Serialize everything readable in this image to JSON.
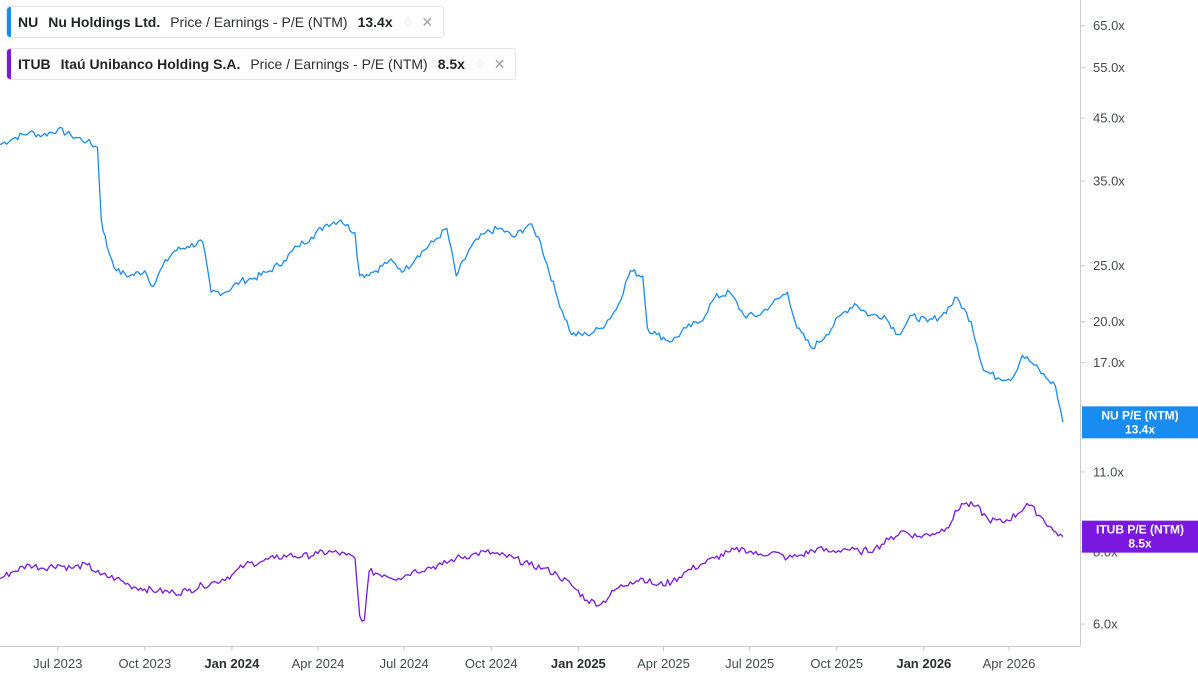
{
  "legend": [
    {
      "ticker": "NU",
      "company": "Nu Holdings Ltd.",
      "metric": "Price / Earnings - P/E (NTM)",
      "value": "13.4x",
      "color": "#1a8cf0"
    },
    {
      "ticker": "ITUB",
      "company": "Itaú Unibanco Holding S.A.",
      "metric": "Price / Earnings - P/E (NTM)",
      "value": "8.5x",
      "color": "#7a18e0"
    }
  ],
  "chart_data": {
    "type": "line",
    "yscale": "log",
    "ylim": [
      5.5,
      72
    ],
    "y_ticks": [
      {
        "value": 6.0,
        "label": "6.0x"
      },
      {
        "value": 8.0,
        "label": "8.0x"
      },
      {
        "value": 11.0,
        "label": "11.0x"
      },
      {
        "value": 17.0,
        "label": "17.0x"
      },
      {
        "value": 20.0,
        "label": "20.0x"
      },
      {
        "value": 25.0,
        "label": "25.0x"
      },
      {
        "value": 35.0,
        "label": "35.0x"
      },
      {
        "value": 45.0,
        "label": "45.0x"
      },
      {
        "value": 55.0,
        "label": "55.0x"
      },
      {
        "value": 65.0,
        "label": "65.0x"
      }
    ],
    "xlim": [
      "2023-05-01",
      "2026-06-15"
    ],
    "x_ticks": [
      {
        "date": "2023-07-01",
        "label": "Jul 2023",
        "bold": false
      },
      {
        "date": "2023-10-01",
        "label": "Oct 2023",
        "bold": false
      },
      {
        "date": "2024-01-01",
        "label": "Jan 2024",
        "bold": true
      },
      {
        "date": "2024-04-01",
        "label": "Apr 2024",
        "bold": false
      },
      {
        "date": "2024-07-01",
        "label": "Jul 2024",
        "bold": false
      },
      {
        "date": "2024-10-01",
        "label": "Oct 2024",
        "bold": false
      },
      {
        "date": "2025-01-01",
        "label": "Jan 2025",
        "bold": true
      },
      {
        "date": "2025-04-01",
        "label": "Apr 2025",
        "bold": false
      },
      {
        "date": "2025-07-01",
        "label": "Jul 2025",
        "bold": false
      },
      {
        "date": "2025-10-01",
        "label": "Oct 2025",
        "bold": false
      },
      {
        "date": "2026-01-01",
        "label": "Jan 2026",
        "bold": true
      },
      {
        "date": "2026-04-01",
        "label": "Apr 2026",
        "bold": false
      }
    ],
    "grid": false,
    "series": [
      {
        "name": "NU P/E (NTM)",
        "end_label": "13.4x",
        "color": "#1a8cf0",
        "points": [
          [
            "2023-05-01",
            40.5
          ],
          [
            "2023-05-15",
            41.5
          ],
          [
            "2023-06-01",
            42.5
          ],
          [
            "2023-06-15",
            42.0
          ],
          [
            "2023-07-01",
            43.0
          ],
          [
            "2023-07-15",
            42.0
          ],
          [
            "2023-08-01",
            41.0
          ],
          [
            "2023-08-12",
            40.0
          ],
          [
            "2023-08-16",
            30.0
          ],
          [
            "2023-08-22",
            27.0
          ],
          [
            "2023-09-01",
            24.5
          ],
          [
            "2023-09-15",
            24.0
          ],
          [
            "2023-10-01",
            24.5
          ],
          [
            "2023-10-10",
            23.0
          ],
          [
            "2023-10-20",
            25.0
          ],
          [
            "2023-11-01",
            26.5
          ],
          [
            "2023-11-15",
            27.0
          ],
          [
            "2023-12-01",
            27.5
          ],
          [
            "2023-12-10",
            22.5
          ],
          [
            "2023-12-25",
            22.5
          ],
          [
            "2024-01-10",
            23.5
          ],
          [
            "2024-01-25",
            23.8
          ],
          [
            "2024-02-10",
            24.5
          ],
          [
            "2024-02-25",
            25.5
          ],
          [
            "2024-03-10",
            27.0
          ],
          [
            "2024-03-25",
            28.0
          ],
          [
            "2024-04-10",
            29.5
          ],
          [
            "2024-04-25",
            30.0
          ],
          [
            "2024-05-10",
            28.5
          ],
          [
            "2024-05-15",
            24.0
          ],
          [
            "2024-06-01",
            24.5
          ],
          [
            "2024-06-15",
            25.5
          ],
          [
            "2024-07-01",
            24.5
          ],
          [
            "2024-07-15",
            26.0
          ],
          [
            "2024-08-01",
            27.5
          ],
          [
            "2024-08-15",
            29.0
          ],
          [
            "2024-08-25",
            24.0
          ],
          [
            "2024-09-10",
            27.0
          ],
          [
            "2024-09-25",
            28.5
          ],
          [
            "2024-10-10",
            29.0
          ],
          [
            "2024-10-25",
            28.0
          ],
          [
            "2024-11-10",
            29.5
          ],
          [
            "2024-11-20",
            28.0
          ],
          [
            "2024-12-10",
            22.0
          ],
          [
            "2024-12-25",
            19.0
          ],
          [
            "2025-01-10",
            19.0
          ],
          [
            "2025-01-25",
            19.5
          ],
          [
            "2025-02-10",
            21.0
          ],
          [
            "2025-02-25",
            24.5
          ],
          [
            "2025-03-10",
            24.0
          ],
          [
            "2025-03-15",
            19.5
          ],
          [
            "2025-03-25",
            19.0
          ],
          [
            "2025-04-10",
            18.5
          ],
          [
            "2025-04-25",
            19.5
          ],
          [
            "2025-05-10",
            20.0
          ],
          [
            "2025-05-25",
            22.0
          ],
          [
            "2025-06-10",
            22.5
          ],
          [
            "2025-06-25",
            20.5
          ],
          [
            "2025-07-10",
            20.5
          ],
          [
            "2025-07-25",
            21.5
          ],
          [
            "2025-08-10",
            22.5
          ],
          [
            "2025-08-20",
            19.5
          ],
          [
            "2025-09-05",
            18.0
          ],
          [
            "2025-09-20",
            19.0
          ],
          [
            "2025-10-05",
            20.5
          ],
          [
            "2025-10-20",
            21.5
          ],
          [
            "2025-11-05",
            20.5
          ],
          [
            "2025-11-20",
            20.5
          ],
          [
            "2025-12-05",
            19.0
          ],
          [
            "2025-12-20",
            20.5
          ],
          [
            "2026-01-05",
            20.0
          ],
          [
            "2026-01-20",
            20.5
          ],
          [
            "2026-02-05",
            22.0
          ],
          [
            "2026-02-20",
            20.0
          ],
          [
            "2026-03-05",
            16.5
          ],
          [
            "2026-03-20",
            16.0
          ],
          [
            "2026-04-05",
            16.0
          ],
          [
            "2026-04-15",
            17.5
          ],
          [
            "2026-04-25",
            17.0
          ],
          [
            "2026-05-10",
            16.0
          ],
          [
            "2026-05-20",
            15.5
          ],
          [
            "2026-05-28",
            13.4
          ]
        ]
      },
      {
        "name": "ITUB P/E (NTM)",
        "end_label": "8.5x",
        "color": "#7a18e0",
        "points": [
          [
            "2023-05-01",
            7.2
          ],
          [
            "2023-05-15",
            7.4
          ],
          [
            "2023-06-01",
            7.6
          ],
          [
            "2023-06-15",
            7.5
          ],
          [
            "2023-07-01",
            7.6
          ],
          [
            "2023-07-15",
            7.5
          ],
          [
            "2023-08-01",
            7.6
          ],
          [
            "2023-08-15",
            7.3
          ],
          [
            "2023-09-01",
            7.2
          ],
          [
            "2023-09-15",
            7.0
          ],
          [
            "2023-10-01",
            6.9
          ],
          [
            "2023-10-15",
            6.85
          ],
          [
            "2023-11-01",
            6.8
          ],
          [
            "2023-11-15",
            6.85
          ],
          [
            "2023-12-01",
            7.0
          ],
          [
            "2023-12-15",
            7.1
          ],
          [
            "2024-01-01",
            7.3
          ],
          [
            "2024-01-15",
            7.6
          ],
          [
            "2024-02-01",
            7.7
          ],
          [
            "2024-02-15",
            7.8
          ],
          [
            "2024-03-01",
            7.9
          ],
          [
            "2024-03-15",
            7.85
          ],
          [
            "2024-04-01",
            7.95
          ],
          [
            "2024-04-15",
            8.0
          ],
          [
            "2024-05-01",
            7.9
          ],
          [
            "2024-05-10",
            7.8
          ],
          [
            "2024-05-15",
            6.2
          ],
          [
            "2024-05-20",
            6.1
          ],
          [
            "2024-05-25",
            7.4
          ],
          [
            "2024-06-10",
            7.3
          ],
          [
            "2024-06-25",
            7.2
          ],
          [
            "2024-07-10",
            7.4
          ],
          [
            "2024-07-25",
            7.5
          ],
          [
            "2024-08-10",
            7.6
          ],
          [
            "2024-08-25",
            7.8
          ],
          [
            "2024-09-10",
            7.9
          ],
          [
            "2024-09-25",
            8.0
          ],
          [
            "2024-10-10",
            7.9
          ],
          [
            "2024-10-25",
            7.8
          ],
          [
            "2024-11-10",
            7.6
          ],
          [
            "2024-11-25",
            7.5
          ],
          [
            "2024-12-10",
            7.3
          ],
          [
            "2024-12-25",
            7.0
          ],
          [
            "2025-01-10",
            6.6
          ],
          [
            "2025-01-25",
            6.5
          ],
          [
            "2025-02-10",
            6.9
          ],
          [
            "2025-02-25",
            7.1
          ],
          [
            "2025-03-10",
            7.2
          ],
          [
            "2025-03-25",
            7.0
          ],
          [
            "2025-04-10",
            7.1
          ],
          [
            "2025-04-25",
            7.4
          ],
          [
            "2025-05-10",
            7.6
          ],
          [
            "2025-05-25",
            7.8
          ],
          [
            "2025-06-10",
            8.0
          ],
          [
            "2025-06-25",
            8.1
          ],
          [
            "2025-07-10",
            7.9
          ],
          [
            "2025-07-25",
            8.0
          ],
          [
            "2025-08-10",
            7.8
          ],
          [
            "2025-08-25",
            7.9
          ],
          [
            "2025-09-10",
            8.1
          ],
          [
            "2025-09-25",
            8.0
          ],
          [
            "2025-10-10",
            8.1
          ],
          [
            "2025-10-25",
            8.0
          ],
          [
            "2025-11-10",
            8.1
          ],
          [
            "2025-11-25",
            8.4
          ],
          [
            "2025-12-10",
            8.7
          ],
          [
            "2025-12-25",
            8.5
          ],
          [
            "2026-01-10",
            8.6
          ],
          [
            "2026-01-25",
            8.8
          ],
          [
            "2026-02-10",
            9.7
          ],
          [
            "2026-02-25",
            9.6
          ],
          [
            "2026-03-10",
            9.1
          ],
          [
            "2026-03-25",
            9.0
          ],
          [
            "2026-04-10",
            9.3
          ],
          [
            "2026-04-20",
            9.7
          ],
          [
            "2026-05-05",
            9.2
          ],
          [
            "2026-05-18",
            8.7
          ],
          [
            "2026-05-28",
            8.5
          ]
        ]
      }
    ]
  }
}
